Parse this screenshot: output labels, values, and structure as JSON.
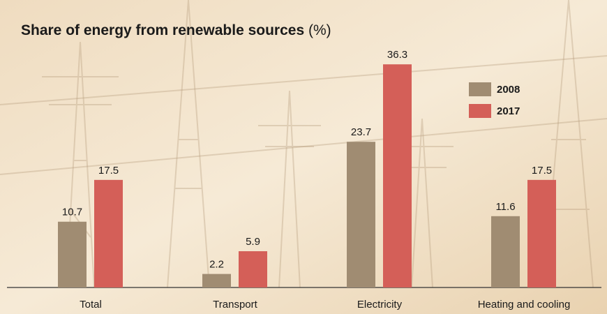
{
  "chart_data": {
    "type": "bar",
    "title": "Share of energy from renewable sources",
    "title_unit": "(%)",
    "categories": [
      "Total",
      "Transport",
      "Electricity",
      "Heating and cooling"
    ],
    "series": [
      {
        "name": "2008",
        "color": "#a08c72",
        "values": [
          10.7,
          2.2,
          23.7,
          11.6
        ]
      },
      {
        "name": "2017",
        "color": "#d45f58",
        "values": [
          17.5,
          5.9,
          36.3,
          17.5
        ]
      }
    ]
  }
}
